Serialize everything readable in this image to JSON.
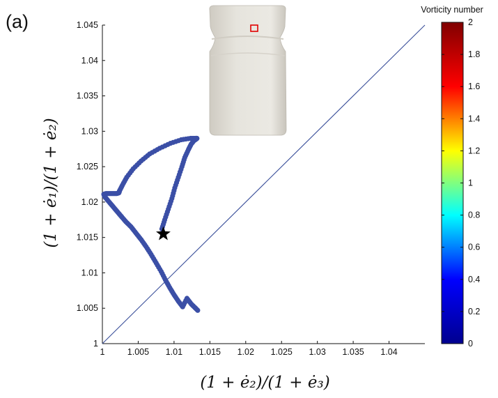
{
  "panel_label": "(a)",
  "chart_data": {
    "type": "scatter",
    "xlabel": "(1 + ė₂)/(1 + ė₃)",
    "ylabel": "(1 + ė₁)/(1 + ė₂)",
    "xlim": [
      1,
      1.045
    ],
    "ylim": [
      1,
      1.045
    ],
    "x_ticks": [
      "1",
      "1.005",
      "1.01",
      "1.015",
      "1.02",
      "1.025",
      "1.03",
      "1.035",
      "1.04"
    ],
    "y_ticks": [
      "1",
      "1.005",
      "1.01",
      "1.015",
      "1.02",
      "1.025",
      "1.03",
      "1.035",
      "1.04",
      "1.045"
    ],
    "marker_color": "#3b4fa6",
    "reference_line": {
      "type": "identity",
      "color": "#3a4f9a"
    },
    "series": [
      {
        "x": [
          1.0083,
          1.0087,
          1.0092,
          1.0097,
          1.0101,
          1.0106,
          1.0111,
          1.0115,
          1.012,
          1.0124,
          1.0128,
          1.0131,
          1.0132,
          1.013,
          1.0123,
          1.011,
          1.0095,
          1.008,
          1.0066,
          1.0054,
          1.0043,
          1.0034,
          1.0028,
          1.0024,
          1.0023,
          1.002,
          1.0015,
          1.001,
          1.0005,
          1.0002,
          1.0003,
          1.0007,
          1.0012,
          1.0017,
          1.0022,
          1.0027,
          1.0033,
          1.004,
          1.0047,
          1.0054,
          1.0061,
          1.0068,
          1.0075,
          1.0082,
          1.0088,
          1.0094,
          1.01,
          1.0106,
          1.0112,
          1.0118,
          1.0124,
          1.0129,
          1.0133
        ],
        "y": [
          1.0162,
          1.0175,
          1.019,
          1.0205,
          1.022,
          1.0235,
          1.025,
          1.0263,
          1.0274,
          1.0282,
          1.0287,
          1.0289,
          1.029,
          1.029,
          1.029,
          1.0288,
          1.0283,
          1.0276,
          1.0268,
          1.0258,
          1.0247,
          1.0235,
          1.0224,
          1.0216,
          1.0213,
          1.0212,
          1.0212,
          1.0212,
          1.0212,
          1.0211,
          1.0208,
          1.0203,
          1.0197,
          1.0191,
          1.0185,
          1.0179,
          1.0172,
          1.0165,
          1.0156,
          1.0147,
          1.0137,
          1.0126,
          1.0114,
          1.0102,
          1.009,
          1.0079,
          1.0069,
          1.006,
          1.0052,
          1.0064,
          1.0056,
          1.0051,
          1.0047
        ]
      }
    ],
    "star_marker": {
      "x": 1.0085,
      "y": 1.0155,
      "color": "#000000"
    },
    "colorbar": {
      "title": "Vorticity number",
      "ticks": [
        "0",
        "0.2",
        "0.4",
        "0.6",
        "0.8",
        "1",
        "1.2",
        "1.4",
        "1.6",
        "1.8",
        "2"
      ],
      "range": [
        0,
        2
      ],
      "colors": [
        "#00008f",
        "#0000ff",
        "#00ffff",
        "#ffff00",
        "#ff0000",
        "#800000"
      ]
    },
    "inset": {
      "description_shape": "deformed specimen",
      "specimen_color": "#e6e4dd",
      "marker_color": "#e00000"
    }
  }
}
